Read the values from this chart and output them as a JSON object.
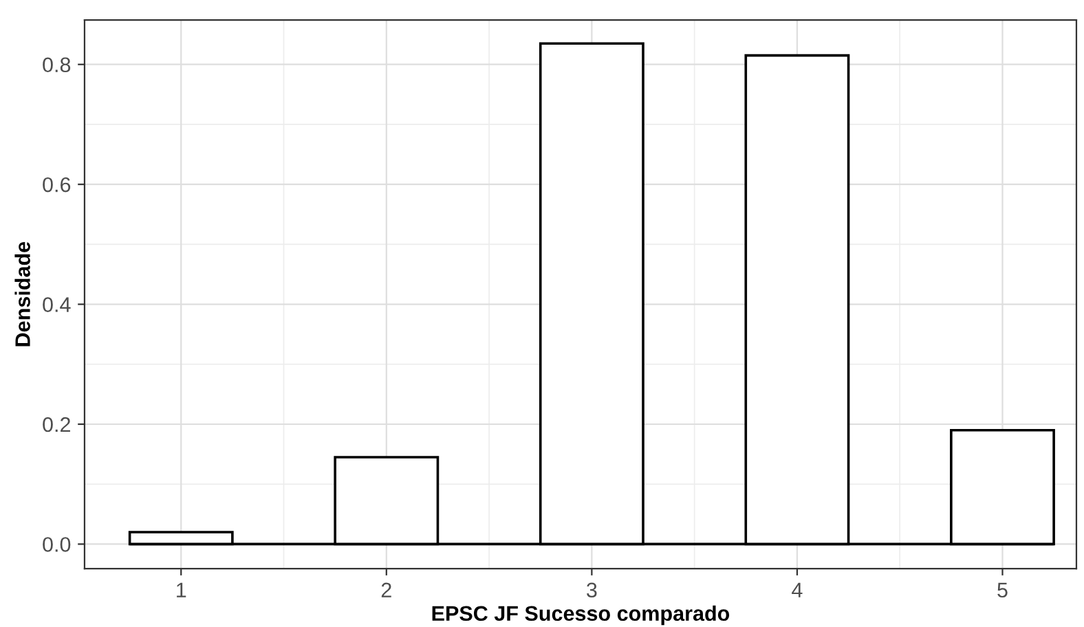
{
  "chart_data": {
    "type": "histogram",
    "xlabel": "EPSC JF Sucesso comparado",
    "ylabel": "Densidade",
    "bins": [
      0.75,
      1.25,
      1.75,
      2.25,
      2.75,
      3.25,
      3.75,
      4.25,
      4.75,
      5.25
    ],
    "values": [
      0.02,
      0,
      0.145,
      0,
      0.835,
      0,
      0.815,
      0,
      0.19
    ],
    "color": "#ffffff",
    "xlim": [
      0.53,
      5.36
    ],
    "xticks": [
      1,
      2,
      3,
      4,
      5
    ],
    "ylim": [
      -0.041,
      0.874
    ],
    "yticks": [
      {
        "value": 0,
        "label": "0.0"
      },
      0.2,
      0.4,
      0.6,
      0.8
    ],
    "grid": true
  }
}
